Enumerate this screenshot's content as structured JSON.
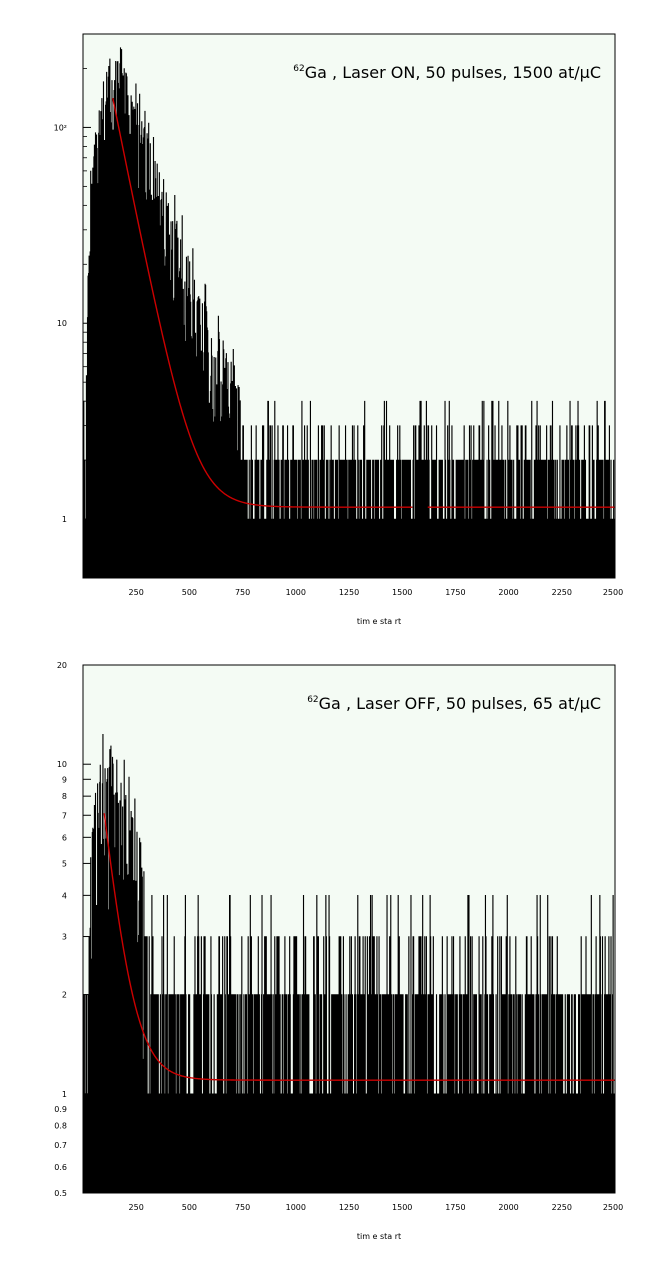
{
  "colors": {
    "background": "#f4fbf4",
    "histogram": "#000000",
    "fit": "#cc0000",
    "axis": "#000000"
  },
  "chart_data": [
    {
      "type": "histogram",
      "title_sup": "62",
      "title_rest": "Ga , Laser ON, 50 pulses, 1500 at/µC",
      "xlabel": "tim e sta rt ",
      "ylog": true,
      "xlim": [
        0,
        2500
      ],
      "ylim": [
        0.5,
        300
      ],
      "x_ticks": [
        "250",
        "500",
        "750",
        "1000",
        "1250",
        "1500",
        "1750",
        "2000",
        "2250",
        "2500"
      ],
      "x_tick_values": [
        250,
        500,
        750,
        1000,
        1250,
        1500,
        1750,
        2000,
        2250,
        2500
      ],
      "y_tick_labels": [
        "1",
        "10",
        "10²"
      ],
      "y_tick_values": [
        1,
        10,
        100
      ],
      "y_minor_values": [
        2,
        3,
        4,
        5,
        6,
        7,
        8,
        9,
        20,
        30,
        40,
        50,
        60,
        70,
        80,
        90,
        200
      ],
      "bin_width": 2.5,
      "envelope": {
        "x": [
          0,
          10,
          20,
          30,
          40,
          50,
          60,
          70,
          80,
          90,
          100,
          120,
          140,
          160,
          180,
          200,
          250,
          300,
          350,
          400,
          450,
          500,
          550,
          600,
          650,
          700,
          750,
          800,
          850,
          900,
          1000,
          1100,
          1200,
          1300,
          1500,
          1750,
          2000,
          2250,
          2500
        ],
        "y": [
          0.5,
          1,
          5,
          22,
          40,
          55,
          65,
          72,
          85,
          105,
          125,
          145,
          155,
          150,
          140,
          125,
          92,
          62,
          42,
          30,
          22,
          15,
          10,
          7.5,
          5.5,
          4.2,
          3.3,
          2.8,
          2.4,
          2.2,
          2.0,
          1.9,
          1.8,
          1.8,
          1.8,
          1.8,
          1.8,
          1.8,
          1.8
        ]
      },
      "fit": {
        "x_start": 140,
        "x_end": 2500,
        "a": 140,
        "tau": 80,
        "c": 1.15,
        "gap": [
          1550,
          1620
        ]
      }
    },
    {
      "type": "histogram",
      "title_sup": "62",
      "title_rest": "Ga , Laser OFF, 50 pulses,  65 at/µC",
      "xlabel": "tim e sta rt ",
      "ylog": true,
      "xlim": [
        0,
        2500
      ],
      "ylim": [
        0.5,
        20
      ],
      "x_ticks": [
        "250",
        "500",
        "750",
        "1000",
        "1250",
        "1500",
        "1750",
        "2000",
        "2250",
        "2500"
      ],
      "x_tick_values": [
        250,
        500,
        750,
        1000,
        1250,
        1500,
        1750,
        2000,
        2250,
        2500
      ],
      "y_tick_labels": [
        "0.5",
        "0.6",
        "0.7",
        "0.8",
        "0.9",
        "1",
        "2",
        "3",
        "4",
        "5",
        "6",
        "7",
        "8",
        "9",
        "10",
        "20"
      ],
      "y_tick_values": [
        0.5,
        0.6,
        0.7,
        0.8,
        0.9,
        1,
        2,
        3,
        4,
        5,
        6,
        7,
        8,
        9,
        10,
        20
      ],
      "y_minor_values": [],
      "bin_width": 2.5,
      "envelope": {
        "x": [
          0,
          20,
          40,
          60,
          80,
          100,
          120,
          140,
          160,
          180,
          200,
          250,
          300,
          350,
          400,
          450,
          500,
          550,
          600,
          650,
          700,
          800,
          1000,
          1250,
          1500,
          1750,
          2000,
          2250,
          2500
        ],
        "y": [
          1.4,
          2.5,
          4,
          5.5,
          6.5,
          7,
          7.5,
          7.3,
          7,
          6.2,
          5.5,
          4.2,
          3.3,
          2.7,
          2.4,
          2.2,
          2.1,
          2.0,
          2.0,
          2.0,
          2.0,
          2.0,
          2.0,
          2.0,
          2.0,
          2.0,
          2.0,
          2.0,
          2.0
        ]
      },
      "fit": {
        "x_start": 100,
        "x_end": 2500,
        "a": 6.0,
        "tau": 70,
        "c": 1.1,
        "gap": null
      }
    }
  ]
}
